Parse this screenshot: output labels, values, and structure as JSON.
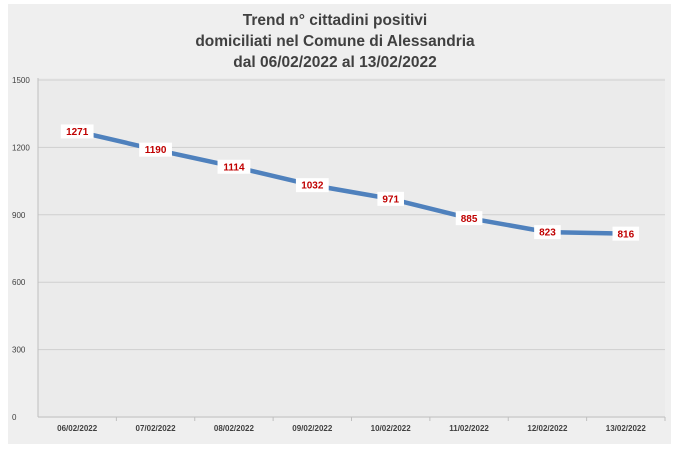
{
  "chart_data": {
    "type": "line",
    "title": [
      "Trend n° cittadini positivi",
      "domiciliati nel Comune di Alessandria",
      "dal 06/02/2022 al 13/02/2022"
    ],
    "categories": [
      "06/02/2022",
      "07/02/2022",
      "08/02/2022",
      "09/02/2022",
      "10/02/2022",
      "11/02/2022",
      "12/02/2022",
      "13/02/2022"
    ],
    "series": [
      {
        "values": [
          1271,
          1190,
          1114,
          1032,
          971,
          885,
          823,
          816
        ]
      }
    ],
    "ylim": [
      0,
      1500
    ],
    "yticks": [
      0,
      300,
      600,
      900,
      1200,
      1500
    ],
    "xlabel": "",
    "ylabel": "",
    "grid": true,
    "legend": "none",
    "colors": {
      "line": "#4f81bd",
      "data_label": "#c00000",
      "plot_background": "#ebebeb",
      "grid": "#cfcfcf",
      "text": "#404040"
    }
  }
}
